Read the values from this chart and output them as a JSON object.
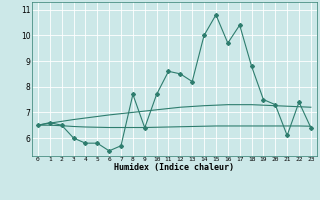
{
  "xlabel": "Humidex (Indice chaleur)",
  "x": [
    0,
    1,
    2,
    3,
    4,
    5,
    6,
    7,
    8,
    9,
    10,
    11,
    12,
    13,
    14,
    15,
    16,
    17,
    18,
    19,
    20,
    21,
    22,
    23
  ],
  "line_main": [
    6.5,
    6.6,
    6.5,
    6.0,
    5.8,
    5.8,
    5.5,
    5.7,
    7.7,
    6.4,
    7.7,
    8.6,
    8.5,
    8.2,
    10.0,
    10.8,
    9.7,
    10.4,
    8.8,
    7.5,
    7.3,
    6.1,
    7.4,
    6.4
  ],
  "line_upper": [
    6.5,
    6.58,
    6.65,
    6.72,
    6.78,
    6.84,
    6.9,
    6.95,
    7.0,
    7.05,
    7.1,
    7.15,
    7.2,
    7.23,
    7.26,
    7.28,
    7.3,
    7.3,
    7.3,
    7.28,
    7.26,
    7.24,
    7.22,
    7.2
  ],
  "line_lower": [
    6.5,
    6.5,
    6.48,
    6.45,
    6.43,
    6.42,
    6.41,
    6.41,
    6.41,
    6.41,
    6.42,
    6.43,
    6.44,
    6.45,
    6.46,
    6.47,
    6.47,
    6.47,
    6.47,
    6.47,
    6.47,
    6.47,
    6.47,
    6.46
  ],
  "color_main": "#2e7d6e",
  "bg_color": "#cce8e8",
  "grid_color": "#b0d8d8",
  "ylim": [
    5.3,
    11.3
  ],
  "yticks": [
    6,
    7,
    8,
    9,
    10,
    11
  ],
  "xlim": [
    -0.5,
    23.5
  ]
}
